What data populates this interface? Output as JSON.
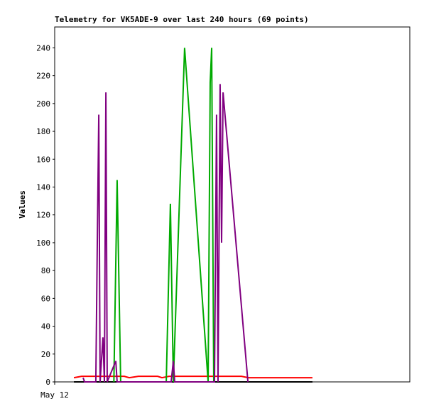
{
  "chart_data": {
    "type": "line",
    "title": "Telemetry for VK5ADE-9 over last 240 hours (69 points)",
    "y_label": "Values",
    "xlim": [
      0,
      240
    ],
    "xticks": [
      {
        "value": 0,
        "label": "May 12"
      }
    ],
    "ylim": [
      0,
      255
    ],
    "yticks": [
      0,
      20,
      40,
      60,
      80,
      100,
      120,
      140,
      160,
      180,
      200,
      220,
      240
    ],
    "series": [
      {
        "color": "#000000",
        "x": [
          13,
          174.2
        ],
        "values": [
          0,
          0
        ]
      },
      {
        "color": "#ff0000",
        "x": [
          13,
          18.2,
          47,
          50.4,
          56.6,
          69.6,
          72.5,
          77.3,
          126.2,
          131,
          174.2
        ],
        "values": [
          3,
          4,
          4,
          3,
          4,
          4,
          3,
          4,
          4,
          3,
          3
        ]
      },
      {
        "color": "#00aa00",
        "x": [
          40,
          42.2,
          44.6,
          75.4,
          78.2,
          80.2,
          87.8,
          103.7,
          105.1,
          106.1,
          107.5
        ],
        "values": [
          0,
          145,
          0,
          0,
          128,
          0,
          240,
          0,
          215,
          240,
          0
        ]
      },
      {
        "color": "#800080",
        "x": [
          19.2,
          20.2,
          27.8,
          28.8,
          29.8,
          30.7,
          32.6,
          33.6,
          34.6,
          35.5,
          41.3,
          42.2,
          78.7,
          80.2,
          81.1,
          108,
          109.4,
          110.4,
          111.8,
          112.8,
          113.8,
          130.6
        ],
        "values": [
          3,
          0,
          0,
          100,
          192,
          0,
          32,
          0,
          208,
          0,
          15,
          0,
          0,
          15,
          0,
          0,
          192,
          0,
          214,
          100,
          208,
          0
        ]
      }
    ]
  }
}
